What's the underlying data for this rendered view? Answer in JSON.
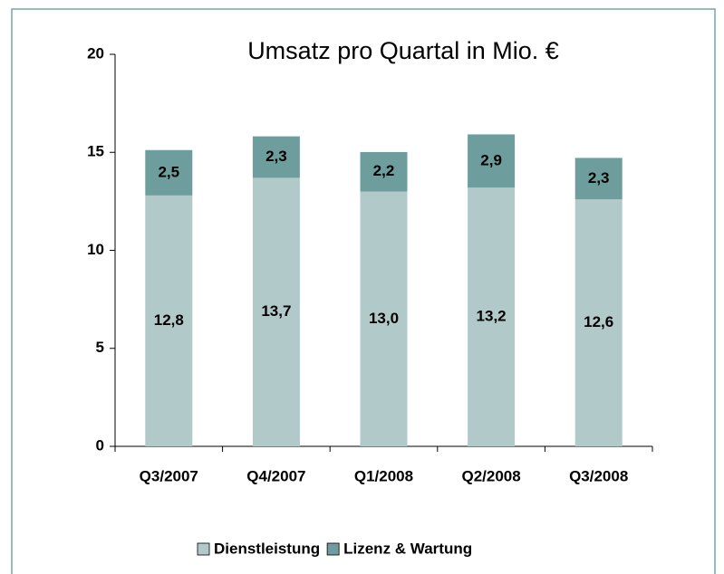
{
  "chart_data": {
    "type": "stacked_bar",
    "title": "Umsatz pro Quartal in Mio. €",
    "categories": [
      "Q3/2007",
      "Q4/2007",
      "Q1/2008",
      "Q2/2008",
      "Q3/2008"
    ],
    "series": [
      {
        "name": "Dienstleistung",
        "color": "#b2c9c9",
        "values": [
          12.8,
          13.7,
          13.0,
          13.2,
          12.6
        ],
        "value_labels": [
          "12,8",
          "13,7",
          "13,0",
          "13,2",
          "12,6"
        ]
      },
      {
        "name": "Lizenz & Wartung",
        "color": "#6e9d9d",
        "values": [
          2.5,
          2.3,
          2.2,
          2.9,
          2.3
        ],
        "value_labels": [
          "2,5",
          "2,3",
          "2,2",
          "2,9",
          "2,3"
        ]
      }
    ],
    "ylim": [
      0,
      20
    ],
    "yticks": [
      0,
      5,
      10,
      15,
      20
    ],
    "legend": "bottom"
  }
}
